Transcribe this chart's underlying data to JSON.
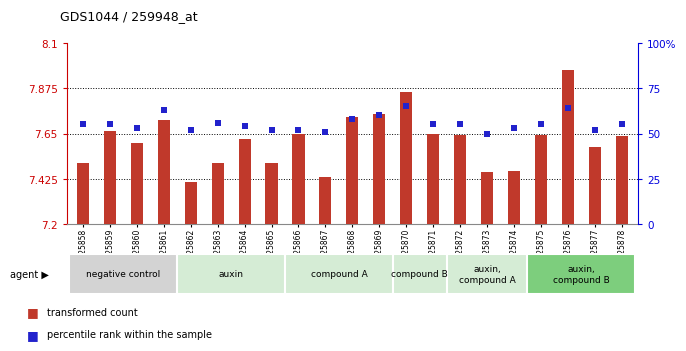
{
  "title": "GDS1044 / 259948_at",
  "samples": [
    "GSM25858",
    "GSM25859",
    "GSM25860",
    "GSM25861",
    "GSM25862",
    "GSM25863",
    "GSM25864",
    "GSM25865",
    "GSM25866",
    "GSM25867",
    "GSM25868",
    "GSM25869",
    "GSM25870",
    "GSM25871",
    "GSM25872",
    "GSM25873",
    "GSM25874",
    "GSM25875",
    "GSM25876",
    "GSM25877",
    "GSM25878"
  ],
  "bar_values": [
    7.505,
    7.665,
    7.605,
    7.715,
    7.41,
    7.505,
    7.625,
    7.505,
    7.65,
    7.435,
    7.73,
    7.745,
    7.855,
    7.65,
    7.645,
    7.46,
    7.465,
    7.645,
    7.965,
    7.585,
    7.64
  ],
  "percentile_values": [
    55,
    55,
    53,
    63,
    52,
    56,
    54,
    52,
    52,
    51,
    58,
    60,
    65,
    55,
    55,
    50,
    53,
    55,
    64,
    52,
    55
  ],
  "ymin": 7.2,
  "ymax": 8.1,
  "yticks": [
    7.2,
    7.425,
    7.65,
    7.875,
    8.1
  ],
  "ytick_labels": [
    "7.2",
    "7.425",
    "7.65",
    "7.875",
    "8.1"
  ],
  "right_yticks": [
    0,
    25,
    50,
    75,
    100
  ],
  "right_ytick_labels": [
    "0",
    "25",
    "50",
    "75",
    "100%"
  ],
  "bar_color": "#c0392b",
  "percentile_color": "#2222cc",
  "bar_bottom": 7.2,
  "agents": [
    {
      "label": "negative control",
      "start": 0,
      "end": 4,
      "color": "#d3d3d3"
    },
    {
      "label": "auxin",
      "start": 4,
      "end": 8,
      "color": "#d5ecd5"
    },
    {
      "label": "compound A",
      "start": 8,
      "end": 12,
      "color": "#d5ecd5"
    },
    {
      "label": "compound B",
      "start": 12,
      "end": 14,
      "color": "#d5ecd5"
    },
    {
      "label": "auxin,\ncompound A",
      "start": 14,
      "end": 17,
      "color": "#d5ecd5"
    },
    {
      "label": "auxin,\ncompound B",
      "start": 17,
      "end": 21,
      "color": "#7dce7d"
    }
  ],
  "legend_bar_label": "transformed count",
  "legend_pct_label": "percentile rank within the sample",
  "left_axis_color": "#cc0000",
  "right_axis_color": "#0000dd",
  "grid_color": "#000000"
}
